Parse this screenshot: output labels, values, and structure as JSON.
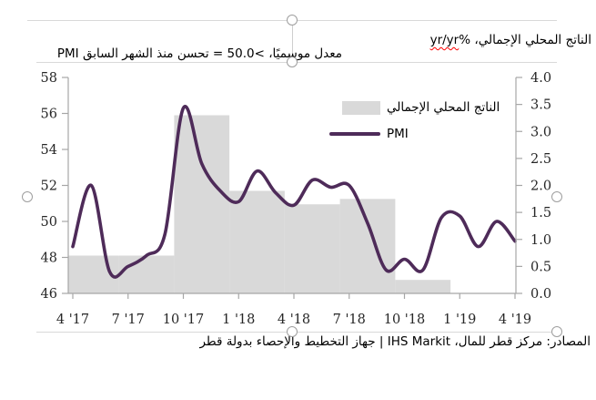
{
  "titles": {
    "left": "PMI معدل موسميًا، >50.0 = تحسن منذ الشهر السابق",
    "right_prefix": "الناتج المحلي الإجمالي، %",
    "right_underlined": "yr/yr"
  },
  "legend": {
    "gdp_label": "الناتج المحلي الإجمالي",
    "pmi_label": "PMI"
  },
  "footer": {
    "source": "المصادر: مركز قطر للمال، IHS Markit | جهاز التخطيط والإحصاء بدولة قطر"
  },
  "colors": {
    "pmi_line": "#4e2b59",
    "gdp_bar": "#d9d9d9",
    "axis": "#a6a6a6",
    "axis_text": "#262626",
    "squiggle": "#ff0000"
  },
  "chart_data": {
    "type": "line+bar",
    "left_axis": {
      "label": "PMI",
      "min": 46,
      "max": 58,
      "ticks": [
        58,
        56,
        54,
        52,
        50,
        48,
        46
      ]
    },
    "right_axis": {
      "label": "GDP % yr/yr",
      "min": 0.0,
      "max": 4.0,
      "ticks": [
        "4.0",
        "3.5",
        "3.0",
        "2.5",
        "2.0",
        "1.5",
        "1.0",
        "0.5",
        "0.0"
      ]
    },
    "x_tick_labels": [
      "4 '17",
      "7 '17",
      "10 '17",
      "1 '18",
      "4 '18",
      "7 '18",
      "10 '18",
      "1 '19",
      "4 '19"
    ],
    "grid": false,
    "legend_position": "inside-top-right",
    "pmi_series": {
      "name": "PMI",
      "axis": "left",
      "months": [
        "2017-04",
        "2017-05",
        "2017-06",
        "2017-07",
        "2017-08",
        "2017-09",
        "2017-10",
        "2017-11",
        "2017-12",
        "2018-01",
        "2018-02",
        "2018-03",
        "2018-04",
        "2018-05",
        "2018-06",
        "2018-07",
        "2018-08",
        "2018-09",
        "2018-10",
        "2018-11",
        "2018-12",
        "2019-01",
        "2019-02",
        "2019-03",
        "2019-04"
      ],
      "values": [
        48.6,
        52.0,
        47.2,
        47.5,
        48.1,
        49.3,
        56.3,
        53.2,
        51.7,
        51.1,
        52.8,
        51.6,
        50.9,
        52.3,
        51.9,
        52.0,
        49.9,
        47.3,
        47.9,
        47.3,
        50.2,
        50.3,
        48.6,
        50.0,
        48.9
      ]
    },
    "gdp_series": {
      "name": "الناتج المحلي الإجمالي",
      "axis": "right",
      "quarters": [
        "Q2 2017",
        "Q3 2017",
        "Q4 2017",
        "Q1 2018",
        "Q2 2018",
        "Q3 2018",
        "Q4 2018"
      ],
      "values": [
        0.7,
        0.7,
        3.3,
        1.9,
        1.65,
        1.75,
        0.25
      ],
      "center_month_index": [
        1,
        4,
        7,
        10,
        13,
        16,
        19
      ]
    }
  }
}
